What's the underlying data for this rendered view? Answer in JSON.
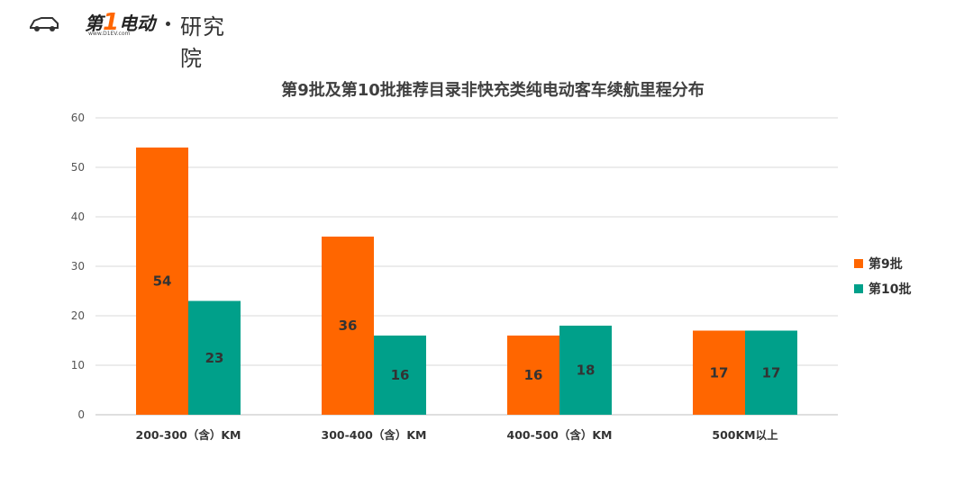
{
  "header": {
    "brand_number": "1",
    "brand_prefix": "第",
    "brand_suffix": "电动",
    "brand_url": "www.D1EV.com",
    "logo_text": "研究院"
  },
  "colors": {
    "batch9": "#ff6600",
    "batch10": "#00a08a",
    "grid": "#d9d9d9",
    "axis": "#bfbfbf"
  },
  "chart_data": {
    "type": "bar",
    "title": "第9批及第10批推荐目录非快充类纯电动客车续航里程分布",
    "categories": [
      "200-300（含）KM",
      "300-400（含）KM",
      "400-500（含）KM",
      "500KM以上"
    ],
    "series": [
      {
        "name": "第9批",
        "values": [
          54,
          36,
          16,
          17
        ]
      },
      {
        "name": "第10批",
        "values": [
          23,
          16,
          18,
          17
        ]
      }
    ],
    "yticks": [
      "0",
      "10",
      "20",
      "30",
      "40",
      "50",
      "60"
    ],
    "ylim": [
      0,
      60
    ],
    "grid": true,
    "legend_position": "right"
  }
}
